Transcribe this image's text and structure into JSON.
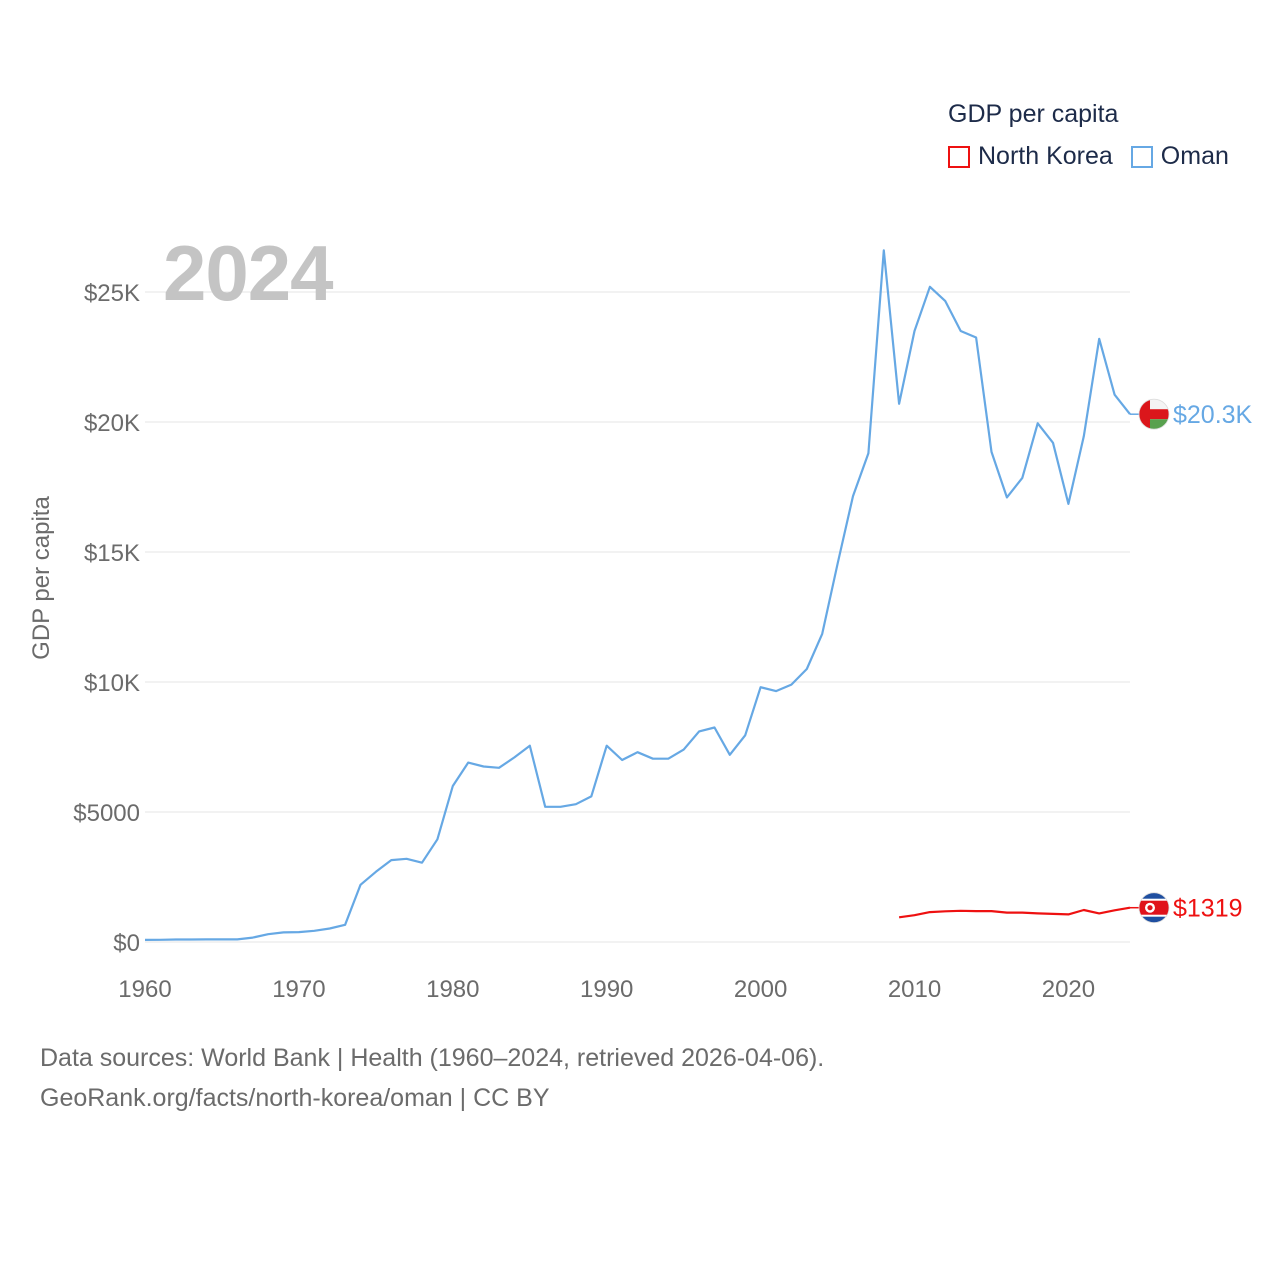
{
  "legend": {
    "title": "GDP per capita",
    "items": [
      {
        "name": "North Korea",
        "color": "#ee1111"
      },
      {
        "name": "Oman",
        "color": "#66a8e4"
      }
    ]
  },
  "year_label": "2024",
  "footer": {
    "line1": "Data sources: World Bank | Health (1960–2024, retrieved 2026-04-06).",
    "line2": "GeoRank.org/facts/north-korea/oman | CC BY"
  },
  "chart_data": {
    "type": "line",
    "title": "GDP per capita",
    "xlabel": "",
    "ylabel": "GDP per capita",
    "xlim": [
      1960,
      2024
    ],
    "ylim": [
      0,
      25000
    ],
    "x_ticks": [
      1960,
      1970,
      1980,
      1990,
      2000,
      2010,
      2020
    ],
    "x_tick_labels": [
      "1960",
      "1970",
      "1980",
      "1990",
      "2000",
      "2010",
      "2020"
    ],
    "y_ticks": [
      0,
      5000,
      10000,
      15000,
      20000,
      25000
    ],
    "y_tick_labels": [
      "$0",
      "$5000",
      "$10K",
      "$15K",
      "$20K",
      "$25K"
    ],
    "grid": true,
    "series": [
      {
        "name": "Oman",
        "color": "#66a8e4",
        "end_label": "$20.3K",
        "flag_icon": "oman-flag-icon",
        "x": [
          1960,
          1961,
          1962,
          1963,
          1964,
          1965,
          1966,
          1967,
          1968,
          1969,
          1970,
          1971,
          1972,
          1973,
          1974,
          1975,
          1976,
          1977,
          1978,
          1979,
          1980,
          1981,
          1982,
          1983,
          1984,
          1985,
          1986,
          1987,
          1988,
          1989,
          1990,
          1991,
          1992,
          1993,
          1994,
          1995,
          1996,
          1997,
          1998,
          1999,
          2000,
          2001,
          2002,
          2003,
          2004,
          2005,
          2006,
          2007,
          2008,
          2009,
          2010,
          2011,
          2012,
          2013,
          2014,
          2015,
          2016,
          2017,
          2018,
          2019,
          2020,
          2021,
          2022,
          2023,
          2024
        ],
        "values": [
          80,
          85,
          95,
          95,
          100,
          100,
          100,
          170,
          300,
          370,
          380,
          430,
          520,
          660,
          2200,
          2700,
          3150,
          3200,
          3050,
          3950,
          6000,
          6900,
          6750,
          6700,
          7100,
          7550,
          5200,
          5200,
          5300,
          5600,
          7550,
          7000,
          7300,
          7050,
          7050,
          7400,
          8100,
          8250,
          7200,
          7950,
          9800,
          9650,
          9900,
          10500,
          11850,
          14550,
          17150,
          18800,
          26600,
          20700,
          23500,
          25200,
          24650,
          23500,
          23250,
          18850,
          17100,
          17850,
          19950,
          19200,
          16850,
          19450,
          23200,
          21050,
          20300
        ]
      },
      {
        "name": "North Korea",
        "color": "#ee1111",
        "end_label": "$1319",
        "flag_icon": "north-korea-flag-icon",
        "x": [
          2009,
          2010,
          2011,
          2012,
          2013,
          2014,
          2015,
          2016,
          2017,
          2018,
          2019,
          2020,
          2021,
          2022,
          2023,
          2024
        ],
        "values": [
          950,
          1030,
          1150,
          1180,
          1200,
          1190,
          1190,
          1130,
          1130,
          1100,
          1080,
          1060,
          1230,
          1100,
          1220,
          1319
        ]
      }
    ]
  }
}
